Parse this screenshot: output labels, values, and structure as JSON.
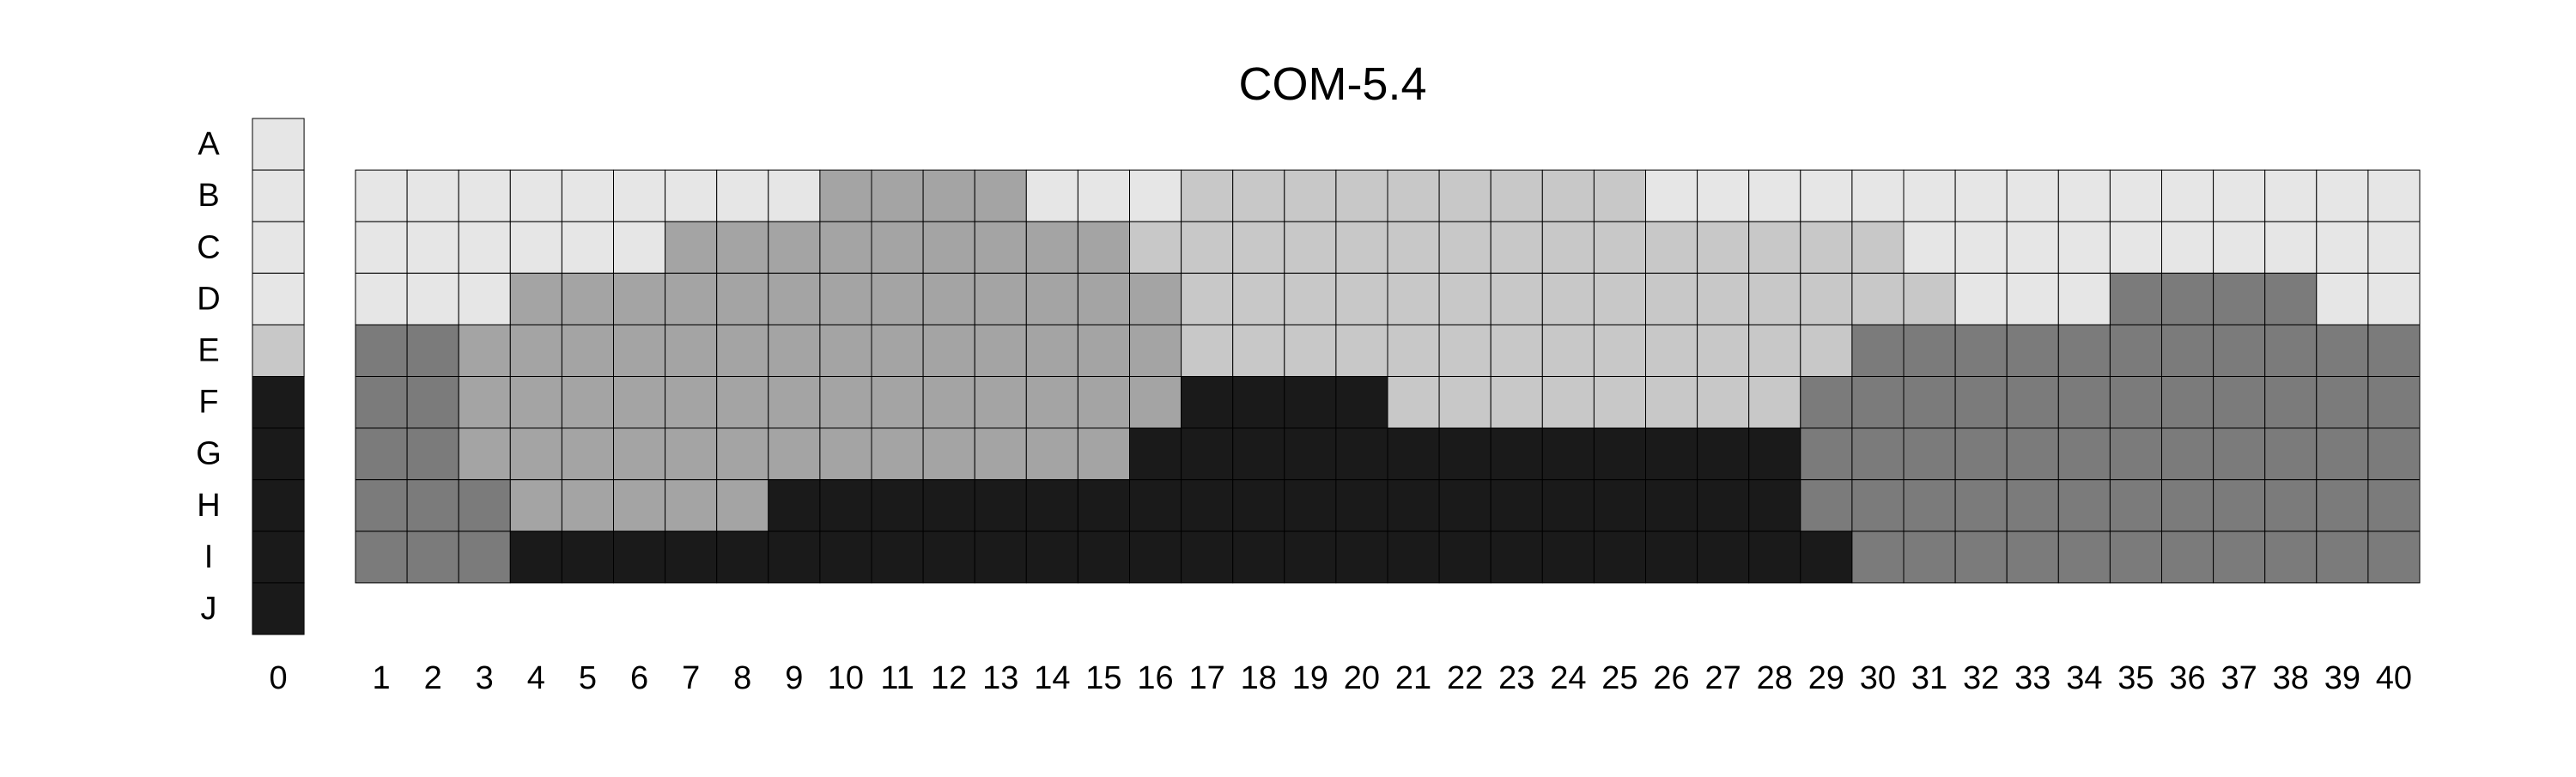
{
  "chart_data": {
    "type": "heatmap",
    "title": "COM-5.4",
    "rows": [
      "A",
      "B",
      "C",
      "D",
      "E",
      "F",
      "G",
      "H",
      "I",
      "J"
    ],
    "reference_column": {
      "label": "0",
      "values": [
        1,
        1,
        1,
        1,
        2,
        5,
        5,
        5,
        5,
        5
      ]
    },
    "columns": [
      "1",
      "2",
      "3",
      "4",
      "5",
      "6",
      "7",
      "8",
      "9",
      "10",
      "11",
      "12",
      "13",
      "14",
      "15",
      "16",
      "17",
      "18",
      "19",
      "20",
      "21",
      "22",
      "23",
      "24",
      "25",
      "26",
      "27",
      "28",
      "29",
      "30",
      "31",
      "32",
      "33",
      "34",
      "35",
      "36",
      "37",
      "38",
      "39",
      "40"
    ],
    "grid_rows": [
      "B",
      "C",
      "D",
      "E",
      "F",
      "G",
      "H",
      "I"
    ],
    "grid": [
      [
        1,
        1,
        1,
        1,
        1,
        1,
        1,
        1,
        1,
        3,
        3,
        3,
        3,
        1,
        1,
        1,
        2,
        2,
        2,
        2,
        2,
        2,
        2,
        2,
        2,
        1,
        1,
        1,
        1,
        1,
        1,
        1,
        1,
        1,
        1,
        1,
        1,
        1,
        1,
        1
      ],
      [
        1,
        1,
        1,
        1,
        1,
        1,
        3,
        3,
        3,
        3,
        3,
        3,
        3,
        3,
        3,
        2,
        2,
        2,
        2,
        2,
        2,
        2,
        2,
        2,
        2,
        2,
        2,
        2,
        2,
        2,
        1,
        1,
        1,
        1,
        1,
        1,
        1,
        1,
        1,
        1
      ],
      [
        1,
        1,
        1,
        3,
        3,
        3,
        3,
        3,
        3,
        3,
        3,
        3,
        3,
        3,
        3,
        3,
        2,
        2,
        2,
        2,
        2,
        2,
        2,
        2,
        2,
        2,
        2,
        2,
        2,
        2,
        2,
        1,
        1,
        1,
        4,
        4,
        4,
        4,
        1,
        1
      ],
      [
        4,
        4,
        3,
        3,
        3,
        3,
        3,
        3,
        3,
        3,
        3,
        3,
        3,
        3,
        3,
        3,
        2,
        2,
        2,
        2,
        2,
        2,
        2,
        2,
        2,
        2,
        2,
        2,
        2,
        4,
        4,
        4,
        4,
        4,
        4,
        4,
        4,
        4,
        4,
        4
      ],
      [
        4,
        4,
        3,
        3,
        3,
        3,
        3,
        3,
        3,
        3,
        3,
        3,
        3,
        3,
        3,
        3,
        5,
        5,
        5,
        5,
        2,
        2,
        2,
        2,
        2,
        2,
        2,
        2,
        4,
        4,
        4,
        4,
        4,
        4,
        4,
        4,
        4,
        4,
        4,
        4
      ],
      [
        4,
        4,
        3,
        3,
        3,
        3,
        3,
        3,
        3,
        3,
        3,
        3,
        3,
        3,
        3,
        5,
        5,
        5,
        5,
        5,
        5,
        5,
        5,
        5,
        5,
        5,
        5,
        5,
        4,
        4,
        4,
        4,
        4,
        4,
        4,
        4,
        4,
        4,
        4,
        4
      ],
      [
        4,
        4,
        4,
        3,
        3,
        3,
        3,
        3,
        5,
        5,
        5,
        5,
        5,
        5,
        5,
        5,
        5,
        5,
        5,
        5,
        5,
        5,
        5,
        5,
        5,
        5,
        5,
        5,
        4,
        4,
        4,
        4,
        4,
        4,
        4,
        4,
        4,
        4,
        4,
        4
      ],
      [
        4,
        4,
        4,
        5,
        5,
        5,
        5,
        5,
        5,
        5,
        5,
        5,
        5,
        5,
        5,
        5,
        5,
        5,
        5,
        5,
        5,
        5,
        5,
        5,
        5,
        5,
        5,
        5,
        5,
        4,
        4,
        4,
        4,
        4,
        4,
        4,
        4,
        4,
        4,
        4
      ]
    ],
    "color_scale": {
      "1": "#e6e6e6",
      "2": "#c8c8c8",
      "3": "#a4a4a4",
      "4": "#7b7b7b",
      "5": "#1a1a1a"
    },
    "xlabel": "",
    "ylabel": "",
    "legend": "none",
    "grid_lines": true
  }
}
